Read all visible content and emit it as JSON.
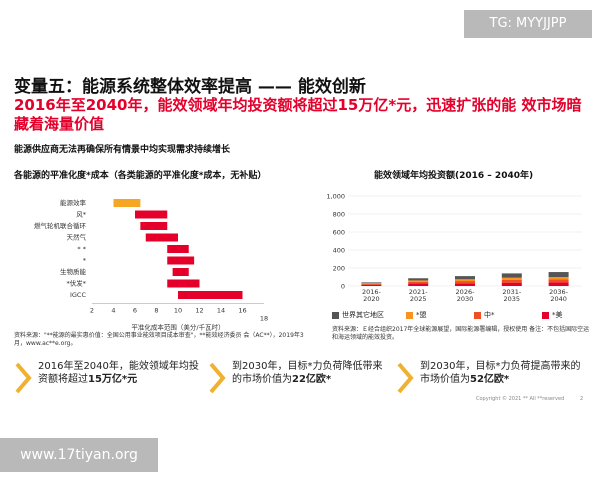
{
  "watermarks": {
    "top_right": "TG: MYYJJPP",
    "bottom_left": "www.17tiyan.org"
  },
  "header": {
    "title": "变量五：能源系统整体效率提高 —— 能效创新",
    "subtitle": "2016年至2040年，能效领域年均投资额将超过15万亿*元，迅速扩张的能 效市场暗藏着海量价值",
    "note": "能源供应商无法再确保所有情景中均实现需求持续增长"
  },
  "left_chart_title": "各能源的平准化度*成本（各类能源的平准化度*成本，无补贴）",
  "right_chart_title": "能效领域年均投资额(2016 – 2040年)",
  "chart_data": [
    {
      "type": "bar",
      "orientation": "horizontal-range",
      "categories": [
        "能源效率",
        "风*",
        "燃气轮机联合循环",
        "天然气",
        "*  *",
        "*",
        "生物质能",
        "*伏发*",
        "IGCC"
      ],
      "ranges": [
        [
          4,
          6.5
        ],
        [
          6,
          9
        ],
        [
          6.5,
          9
        ],
        [
          7,
          10
        ],
        [
          9,
          11
        ],
        [
          9,
          11.5
        ],
        [
          9.5,
          11
        ],
        [
          9,
          12
        ],
        [
          10,
          16
        ]
      ],
      "highlight_color": "#f5a623",
      "bar_color": "#e4002b",
      "x_ticks": [
        "2",
        "4",
        "6",
        "8",
        "10",
        "12",
        "14",
        "16",
        "18"
      ],
      "xlabel": "平准化成本范围（美分/千瓦时）",
      "xlim": [
        2,
        18
      ]
    },
    {
      "type": "bar",
      "stacked": true,
      "categories": [
        "2016-2020",
        "2021-2025",
        "2026-2030",
        "2031-2035",
        "2036-2040"
      ],
      "series": [
        {
          "name": "*美",
          "color": "#e4002b",
          "values": [
            13,
            27,
            30,
            37,
            40
          ]
        },
        {
          "name": "中*",
          "color": "#f04e23",
          "values": [
            10,
            20,
            25,
            30,
            33
          ]
        },
        {
          "name": "*盟",
          "color": "#f7931e",
          "values": [
            8,
            15,
            20,
            25,
            27
          ]
        },
        {
          "name": "世界其它地区",
          "color": "#555555",
          "values": [
            9,
            24,
            35,
            48,
            55
          ]
        }
      ],
      "y_ticks": [
        "0",
        "200",
        "400",
        "600",
        "800",
        "1,000"
      ],
      "ylim": [
        0,
        1000
      ]
    }
  ],
  "legend": [
    "世界其它地区",
    "*盟",
    "中*",
    "*美"
  ],
  "sources": {
    "left": "资料来源：\"**能源的最实惠价值：全国公用事业能效项目成本审查\"，**能效经济委员 会（AC**），2019年3月，www.ac**e.org。",
    "right": "资料来源：Ｅ经合组织2017年全球能源展望，国际能源署编辑，授权使用 备注：不包括国际空运和海运领域的能效投资。"
  },
  "callouts": [
    {
      "text": "2016年至2040年，能效领域年均投资额将超过",
      "bold": "15万亿*元"
    },
    {
      "text": "到2030年，目标*力负荷降低带来的市场价值为",
      "bold": "22亿欧*"
    },
    {
      "text": "到2030年，目标*力负荷提高带来的市场价值为",
      "bold": "52亿欧*"
    }
  ],
  "footer": {
    "copyright": "Copyright © 2021 ** All **reserved",
    "page": "2"
  }
}
